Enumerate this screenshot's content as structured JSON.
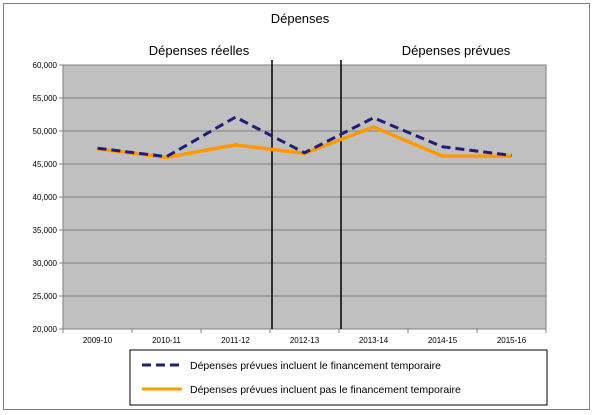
{
  "chart_data": {
    "type": "line",
    "title": "Dépenses",
    "annotations": [
      "Dépenses réelles",
      "Dépenses prévues"
    ],
    "categories": [
      "2009-10",
      "2010-11",
      "2011-12",
      "2012-13",
      "2013-14",
      "2014-15",
      "2015-16"
    ],
    "ylim": [
      20000,
      60000
    ],
    "y_ticks": [
      "20,000",
      "25,000",
      "30,000",
      "35,000",
      "40,000",
      "45,000",
      "50,000",
      "55,000",
      "60,000"
    ],
    "grid": true,
    "plot_background": "#c0c0c0",
    "legend_position": "bottom",
    "series": [
      {
        "name": "Dépenses prévues incluent le financement temporaire",
        "values": [
          47400,
          46100,
          52100,
          46700,
          52000,
          47600,
          46300
        ],
        "color": "#1f1f7a",
        "style": "dashed"
      },
      {
        "name": "Dépenses prévues incluent pas le financement temporaire",
        "values": [
          47300,
          46000,
          47900,
          46600,
          50600,
          46200,
          46200
        ],
        "color": "#ff9900",
        "style": "solid"
      }
    ]
  }
}
